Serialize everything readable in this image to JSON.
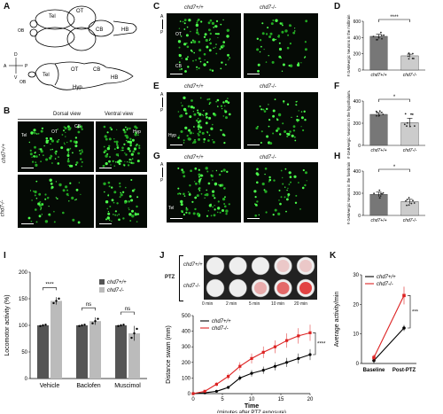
{
  "panels": {
    "A": {
      "letter": "A",
      "labels": {
        "tel": "Tel",
        "ot": "OT",
        "cb": "CB",
        "hb": "HB",
        "ob": "OB",
        "hyp": "Hyp",
        "ob2": "OB",
        "tel2": "Tel",
        "ot2": "OT",
        "cb2": "CB",
        "hb2": "HB"
      },
      "compass": {
        "d": "D",
        "v": "V",
        "a": "A",
        "p": "P"
      }
    },
    "B": {
      "letter": "B",
      "dorsal": "Dorsal view",
      "ventral": "Ventral view",
      "wt": "chd7+/+",
      "mut": "chd7-/-",
      "in": {
        "tel": "Tel",
        "ot": "OT",
        "cb": "CB",
        "hyp": "Hyp"
      }
    },
    "C": {
      "letter": "C",
      "wt": "chd7+/+",
      "mut": "chd7-/-",
      "a": "A",
      "p": "P",
      "ot": "OT",
      "cb": "CB"
    },
    "D": {
      "letter": "D"
    },
    "E": {
      "letter": "E",
      "wt": "chd7+/+",
      "mut": "chd7-/-",
      "a": "A",
      "p": "P",
      "hyp": "Hyp"
    },
    "F": {
      "letter": "F"
    },
    "G": {
      "letter": "G",
      "wt": "chd7+/+",
      "mut": "chd7-/-",
      "a": "A",
      "p": "P",
      "tel": "Tel"
    },
    "H": {
      "letter": "H"
    },
    "I": {
      "letter": "I"
    },
    "J": {
      "letter": "J",
      "ptz": "PTZ",
      "wt": "chd7+/+",
      "mut": "chd7-/-",
      "times": [
        "0 min",
        "2 min",
        "5 min",
        "10 min",
        "20 min"
      ]
    },
    "K": {
      "letter": "K"
    }
  },
  "chart_data": [
    {
      "id": "D",
      "type": "bar",
      "categories": [
        "chd7+/+",
        "chd7-/-"
      ],
      "values": [
        415,
        175
      ],
      "errors": [
        25,
        20
      ],
      "ylabel": "# GABAergic Neurons in the midbrain",
      "ylim": [
        0,
        600
      ],
      "yticks": [
        0,
        200,
        400,
        600
      ],
      "significance": "****"
    },
    {
      "id": "F",
      "type": "bar",
      "categories": [
        "chd7+/+",
        "chd7-/-"
      ],
      "values": [
        280,
        205
      ],
      "errors": [
        15,
        40
      ],
      "ylabel": "# GABAergic Neurons in the hypothalamus",
      "ylim": [
        0,
        400
      ],
      "yticks": [
        0,
        200,
        400
      ],
      "significance": "*"
    },
    {
      "id": "H",
      "type": "bar",
      "categories": [
        "chd7+/+",
        "chd7-/-"
      ],
      "values": [
        190,
        125
      ],
      "errors": [
        20,
        20
      ],
      "ylabel": "# GABAergic Neurons in the forebrain",
      "ylim": [
        0,
        400
      ],
      "yticks": [
        0,
        200,
        400
      ],
      "significance": "*"
    },
    {
      "id": "I",
      "type": "bar",
      "categories": [
        "Vehicle",
        "Baclofen",
        "Muscimol"
      ],
      "series": [
        {
          "name": "chd7+/+",
          "values": [
            100,
            100,
            100
          ],
          "color": "#555555"
        },
        {
          "name": "chd7-/-",
          "values": [
            146,
            108,
            85
          ],
          "color": "#bbbbbb"
        }
      ],
      "ylabel": "Locomotor activity (%)",
      "ylim": [
        0,
        200
      ],
      "yticks": [
        0,
        50,
        100,
        150,
        200
      ],
      "significance": [
        "****",
        "ns",
        "ns"
      ]
    },
    {
      "id": "J",
      "type": "line",
      "x": [
        0,
        2,
        4,
        6,
        8,
        10,
        12,
        14,
        16,
        18,
        20
      ],
      "series": [
        {
          "name": "chd7+/+",
          "values": [
            0,
            5,
            15,
            40,
            100,
            130,
            150,
            175,
            200,
            225,
            250
          ],
          "color": "#000000"
        },
        {
          "name": "chd7-/-",
          "values": [
            0,
            15,
            60,
            110,
            175,
            225,
            265,
            300,
            340,
            370,
            390
          ],
          "color": "#dd2222"
        }
      ],
      "xlabel": "Time",
      "xsub": "(minutes after PTZ exposure)",
      "ylabel": "Distance swam (mm)",
      "xlim": [
        0,
        20
      ],
      "ylim": [
        0,
        500
      ],
      "xticks": [
        0,
        5,
        10,
        15,
        20
      ],
      "yticks": [
        0,
        100,
        200,
        300,
        400,
        500
      ],
      "significance": "****"
    },
    {
      "id": "K",
      "type": "line",
      "categories": [
        "Baseline",
        "Post-PTZ"
      ],
      "series": [
        {
          "name": "chd7+/+",
          "values": [
            1,
            12
          ],
          "color": "#000000"
        },
        {
          "name": "chd7-/-",
          "values": [
            2,
            23
          ],
          "color": "#dd2222"
        }
      ],
      "ylabel": "Average activity/min",
      "ylim": [
        0,
        30
      ],
      "yticks": [
        0,
        10,
        20,
        30
      ],
      "significance": "***"
    }
  ]
}
